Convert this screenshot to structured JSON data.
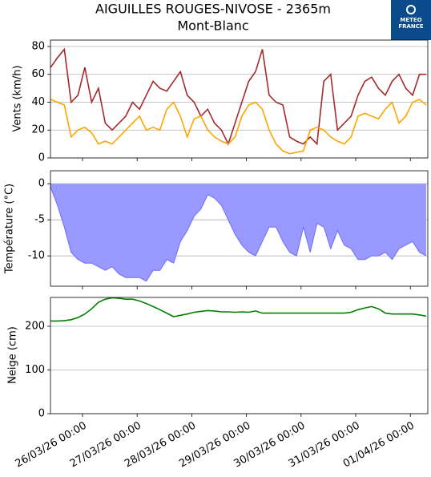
{
  "title": "AIGUILLES ROUGES-NIVOSE - 2365m",
  "subtitle": "Mont-Blanc",
  "logo": {
    "line1": "METEO",
    "line2": "FRANCE"
  },
  "chart_data": [
    {
      "type": "line",
      "ylabel": "Vents (km/h)",
      "x": [
        "25/03/26 10:00",
        "25/03/26 13:00",
        "25/03/26 16:00",
        "25/03/26 19:00",
        "25/03/26 22:00",
        "26/03/26 01:00",
        "26/03/26 04:00",
        "26/03/26 07:00",
        "26/03/26 10:00",
        "26/03/26 13:00",
        "26/03/26 16:00",
        "26/03/26 19:00",
        "26/03/26 22:00",
        "27/03/26 01:00",
        "27/03/26 04:00",
        "27/03/26 07:00",
        "27/03/26 10:00",
        "27/03/26 13:00",
        "27/03/26 16:00",
        "27/03/26 19:00",
        "27/03/26 22:00",
        "28/03/26 01:00",
        "28/03/26 04:00",
        "28/03/26 07:00",
        "28/03/26 10:00",
        "28/03/26 13:00",
        "28/03/26 16:00",
        "28/03/26 19:00",
        "28/03/26 22:00",
        "29/03/26 01:00",
        "29/03/26 04:00",
        "29/03/26 07:00",
        "29/03/26 10:00",
        "29/03/26 13:00",
        "29/03/26 16:00",
        "29/03/26 19:00",
        "29/03/26 22:00",
        "30/03/26 01:00",
        "30/03/26 04:00",
        "30/03/26 07:00",
        "30/03/26 10:00",
        "30/03/26 13:00",
        "30/03/26 16:00",
        "30/03/26 19:00",
        "30/03/26 22:00",
        "31/03/26 01:00",
        "31/03/26 04:00",
        "31/03/26 07:00",
        "31/03/26 10:00",
        "31/03/26 13:00",
        "31/03/26 16:00",
        "31/03/26 19:00",
        "31/03/26 22:00",
        "01/04/26 01:00",
        "01/04/26 04:00",
        "01/04/26 07:00"
      ],
      "series": [
        {
          "color": "#a52a2a",
          "values": [
            65,
            72,
            78,
            40,
            45,
            65,
            40,
            50,
            25,
            20,
            25,
            30,
            40,
            35,
            45,
            55,
            50,
            48,
            55,
            62,
            45,
            40,
            30,
            35,
            25,
            20,
            10,
            25,
            40,
            55,
            62,
            78,
            45,
            40,
            38,
            15,
            12,
            10,
            15,
            10,
            55,
            60,
            20,
            25,
            30,
            45,
            55,
            58,
            50,
            45,
            55,
            60,
            50,
            45,
            60,
            60
          ]
        },
        {
          "color": "#ffa500",
          "values": [
            42,
            40,
            38,
            15,
            20,
            22,
            18,
            10,
            12,
            10,
            15,
            20,
            25,
            30,
            20,
            22,
            20,
            35,
            40,
            30,
            15,
            28,
            30,
            20,
            15,
            12,
            10,
            15,
            30,
            38,
            40,
            35,
            20,
            10,
            5,
            3,
            4,
            5,
            20,
            22,
            20,
            15,
            12,
            10,
            15,
            30,
            32,
            30,
            28,
            35,
            40,
            25,
            30,
            40,
            42,
            38
          ]
        }
      ],
      "xlim": [
        "25/03/26 09:55",
        "01/04/26 07:40"
      ],
      "xticks": [
        "26/03/26 00:00",
        "27/03/26 00:00",
        "28/03/26 00:00",
        "29/03/26 00:00",
        "30/03/26 00:00",
        "31/03/26 00:00",
        "01/04/26 00:00"
      ],
      "ylim": [
        0,
        84.6
      ],
      "yticks": [
        0,
        20,
        40,
        60,
        80
      ],
      "grid": true
    },
    {
      "type": "area",
      "ylabel": "Température (°C)",
      "color": "#9999ff",
      "edge_color": "#6b6bff",
      "x": [
        "25/03/26 10:00",
        "25/03/26 13:00",
        "25/03/26 16:00",
        "25/03/26 19:00",
        "25/03/26 22:00",
        "26/03/26 01:00",
        "26/03/26 04:00",
        "26/03/26 07:00",
        "26/03/26 10:00",
        "26/03/26 13:00",
        "26/03/26 16:00",
        "26/03/26 19:00",
        "26/03/26 22:00",
        "27/03/26 01:00",
        "27/03/26 04:00",
        "27/03/26 07:00",
        "27/03/26 10:00",
        "27/03/26 13:00",
        "27/03/26 16:00",
        "27/03/26 19:00",
        "27/03/26 22:00",
        "28/03/26 01:00",
        "28/03/26 04:00",
        "28/03/26 07:00",
        "28/03/26 10:00",
        "28/03/26 13:00",
        "28/03/26 16:00",
        "28/03/26 19:00",
        "28/03/26 22:00",
        "29/03/26 01:00",
        "29/03/26 04:00",
        "29/03/26 07:00",
        "29/03/26 10:00",
        "29/03/26 13:00",
        "29/03/26 16:00",
        "29/03/26 19:00",
        "29/03/26 22:00",
        "30/03/26 01:00",
        "30/03/26 04:00",
        "30/03/26 07:00",
        "30/03/26 10:00",
        "30/03/26 13:00",
        "30/03/26 16:00",
        "30/03/26 19:00",
        "30/03/26 22:00",
        "31/03/26 01:00",
        "31/03/26 04:00",
        "31/03/26 07:00",
        "31/03/26 10:00",
        "31/03/26 13:00",
        "31/03/26 16:00",
        "31/03/26 19:00",
        "31/03/26 22:00",
        "01/04/26 01:00",
        "01/04/26 04:00",
        "01/04/26 07:00"
      ],
      "values": [
        -0.5,
        -3,
        -6,
        -9.5,
        -10.5,
        -11,
        -11,
        -11.5,
        -12,
        -11.5,
        -12.5,
        -13,
        -13,
        -13,
        -13.5,
        -12,
        -12,
        -10.5,
        -11,
        -8,
        -6.5,
        -4.5,
        -3.5,
        -1.5,
        -2,
        -3,
        -5,
        -7,
        -8.5,
        -9.5,
        -10,
        -8,
        -6,
        -6,
        -8,
        -9.5,
        -10,
        -6,
        -9.5,
        -5.5,
        -6,
        -9,
        -6.5,
        -8.5,
        -9,
        -10.5,
        -10.5,
        -10,
        -10,
        -9.5,
        -10.5,
        -9,
        -8.5,
        -8,
        -9.5,
        -10
      ],
      "xlim": [
        "25/03/26 09:55",
        "01/04/26 07:40"
      ],
      "xticks": [
        "26/03/26 00:00",
        "27/03/26 00:00",
        "28/03/26 00:00",
        "29/03/26 00:00",
        "30/03/26 00:00",
        "31/03/26 00:00",
        "01/04/26 00:00"
      ],
      "ylim": [
        -14.2,
        1.8
      ],
      "yticks": [
        0,
        -5,
        -10
      ],
      "grid": true
    },
    {
      "type": "line",
      "ylabel": "Neige (cm)",
      "x": [
        "25/03/26 10:00",
        "25/03/26 13:00",
        "25/03/26 16:00",
        "25/03/26 19:00",
        "25/03/26 22:00",
        "26/03/26 01:00",
        "26/03/26 04:00",
        "26/03/26 07:00",
        "26/03/26 10:00",
        "26/03/26 13:00",
        "26/03/26 16:00",
        "26/03/26 19:00",
        "26/03/26 22:00",
        "27/03/26 01:00",
        "27/03/26 04:00",
        "27/03/26 07:00",
        "27/03/26 10:00",
        "27/03/26 13:00",
        "27/03/26 16:00",
        "27/03/26 19:00",
        "27/03/26 22:00",
        "28/03/26 01:00",
        "28/03/26 04:00",
        "28/03/26 07:00",
        "28/03/26 10:00",
        "28/03/26 13:00",
        "28/03/26 16:00",
        "28/03/26 19:00",
        "28/03/26 22:00",
        "29/03/26 01:00",
        "29/03/26 04:00",
        "29/03/26 07:00",
        "29/03/26 10:00",
        "29/03/26 13:00",
        "29/03/26 16:00",
        "29/03/26 19:00",
        "29/03/26 22:00",
        "30/03/26 01:00",
        "30/03/26 04:00",
        "30/03/26 07:00",
        "30/03/26 10:00",
        "30/03/26 13:00",
        "30/03/26 16:00",
        "30/03/26 19:00",
        "30/03/26 22:00",
        "31/03/26 01:00",
        "31/03/26 04:00",
        "31/03/26 07:00",
        "31/03/26 10:00",
        "31/03/26 13:00",
        "31/03/26 16:00",
        "31/03/26 19:00",
        "31/03/26 22:00",
        "01/04/26 01:00",
        "01/04/26 04:00",
        "01/04/26 07:00"
      ],
      "series": [
        {
          "color": "#008000",
          "values": [
            212,
            212,
            213,
            215,
            220,
            228,
            240,
            255,
            262,
            265,
            264,
            262,
            262,
            258,
            252,
            245,
            238,
            230,
            222,
            225,
            228,
            232,
            234,
            236,
            235,
            233,
            233,
            232,
            233,
            232,
            235,
            230,
            230,
            230,
            230,
            230,
            230,
            230,
            230,
            230,
            230,
            230,
            230,
            230,
            232,
            238,
            242,
            245,
            240,
            230,
            228,
            228,
            228,
            228,
            226,
            223
          ]
        }
      ],
      "xlim": [
        "25/03/26 09:55",
        "01/04/26 07:40"
      ],
      "xticks": [
        "26/03/26 00:00",
        "27/03/26 00:00",
        "28/03/26 00:00",
        "29/03/26 00:00",
        "30/03/26 00:00",
        "31/03/26 00:00",
        "01/04/26 00:00"
      ],
      "ylim": [
        0,
        266
      ],
      "yticks": [
        0,
        100,
        200
      ],
      "grid": true
    }
  ]
}
